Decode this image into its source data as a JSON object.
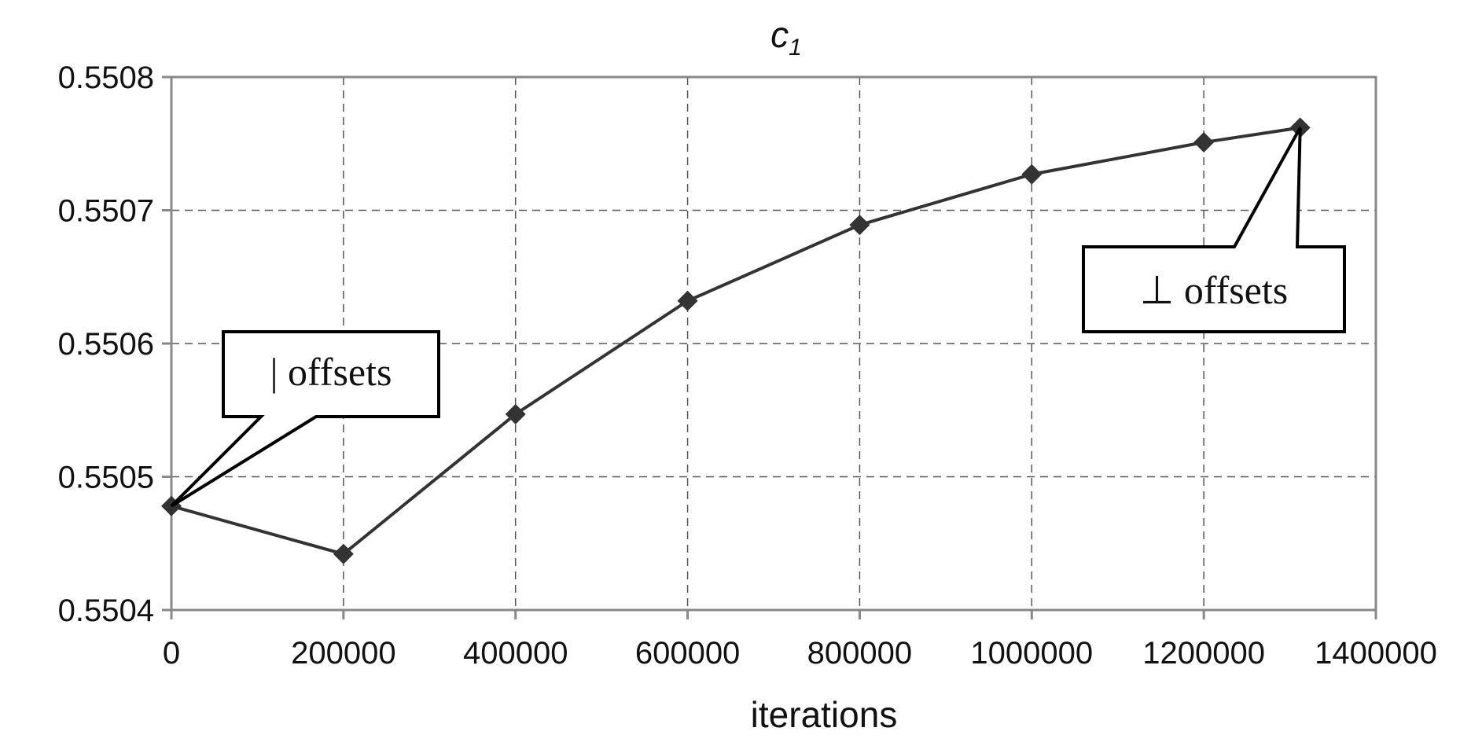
{
  "chart_data": {
    "type": "line",
    "title": "c",
    "title_subscript": "1",
    "xlabel": "iterations",
    "ylabel": "",
    "xlim": [
      0,
      1400000
    ],
    "ylim": [
      0.5504,
      0.5508
    ],
    "xticks": [
      "0",
      "200000",
      "400000",
      "600000",
      "800000",
      "1000000",
      "1200000",
      "1400000"
    ],
    "yticks": [
      "0.5504",
      "0.5505",
      "0.5506",
      "0.5507",
      "0.5508"
    ],
    "grid": true,
    "series": [
      {
        "marker": "diamond",
        "color": "#333333",
        "x": [
          0,
          200000,
          400000,
          600000,
          800000,
          1000000,
          1200000,
          1312000
        ],
        "y": [
          0.550478,
          0.550442,
          0.550547,
          0.550632,
          0.550689,
          0.550727,
          0.550751,
          0.550762
        ]
      }
    ],
    "annotations": [
      {
        "text": "| offsets",
        "point_index": 0
      },
      {
        "text": "⊥ offsets",
        "point_index": 7
      }
    ]
  }
}
